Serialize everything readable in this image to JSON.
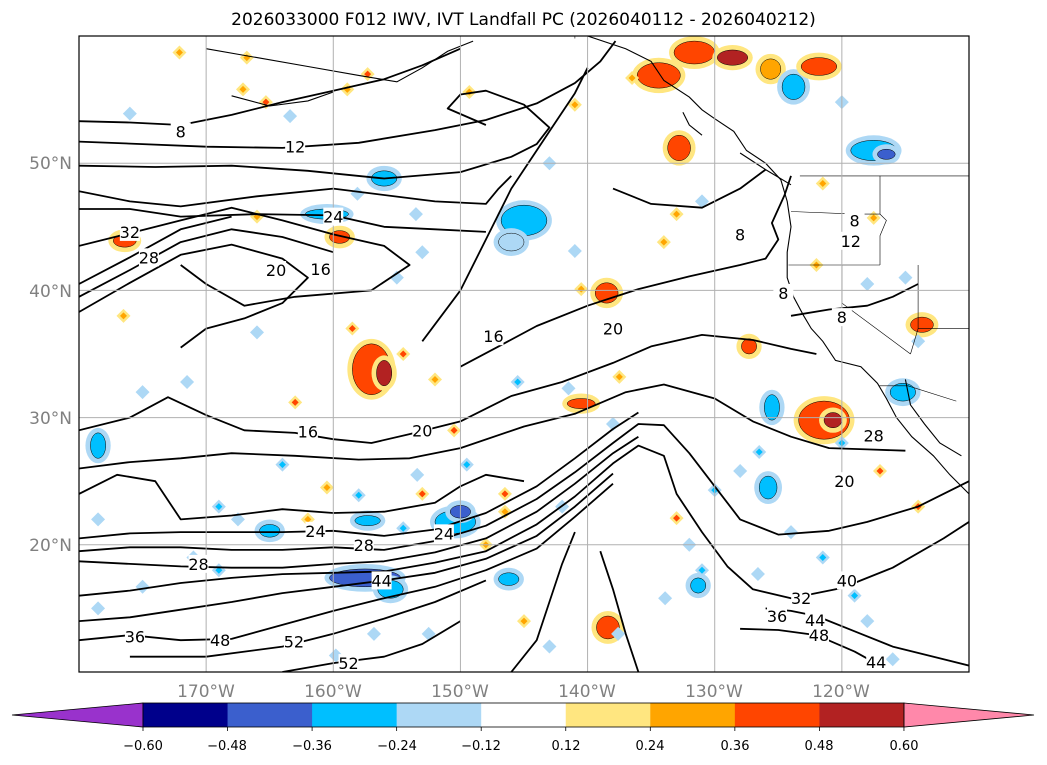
{
  "title": "2026033000 F012 IWV, IVT Landfall PC (2026040112 - 2026040212)",
  "map": {
    "lat_labels": [
      "50°N",
      "40°N",
      "30°N",
      "20°N"
    ],
    "lon_labels": [
      "170°W",
      "160°W",
      "150°W",
      "140°W",
      "130°W",
      "120°W"
    ],
    "gridline_color": "#b0b0b0",
    "land_outline_color": "#000000"
  },
  "contours": {
    "variable": "IWV",
    "labels": [
      {
        "text": "8",
        "lon": -172,
        "lat": 52.5
      },
      {
        "text": "12",
        "lon": -163,
        "lat": 51.3
      },
      {
        "text": "32",
        "lon": -176,
        "lat": 44.6
      },
      {
        "text": "28",
        "lon": -174.5,
        "lat": 42.6
      },
      {
        "text": "24",
        "lon": -160,
        "lat": 45.8
      },
      {
        "text": "20",
        "lon": -164.5,
        "lat": 41.6
      },
      {
        "text": "16",
        "lon": -161,
        "lat": 41.7
      },
      {
        "text": "8",
        "lon": -128,
        "lat": 44.4
      },
      {
        "text": "12",
        "lon": -119.3,
        "lat": 43.9
      },
      {
        "text": "8",
        "lon": -119,
        "lat": 45.5
      },
      {
        "text": "8",
        "lon": -124.6,
        "lat": 39.8
      },
      {
        "text": "8",
        "lon": -120,
        "lat": 37.9
      },
      {
        "text": "16",
        "lon": -147.4,
        "lat": 36.4
      },
      {
        "text": "20",
        "lon": -138,
        "lat": 37.0
      },
      {
        "text": "16",
        "lon": -162,
        "lat": 28.9
      },
      {
        "text": "20",
        "lon": -153,
        "lat": 29.0
      },
      {
        "text": "28",
        "lon": -117.5,
        "lat": 28.6
      },
      {
        "text": "20",
        "lon": -119.8,
        "lat": 25.0
      },
      {
        "text": "24",
        "lon": -161.4,
        "lat": 21.1
      },
      {
        "text": "28",
        "lon": -170.6,
        "lat": 18.5
      },
      {
        "text": "28",
        "lon": -157.6,
        "lat": 20.0
      },
      {
        "text": "24",
        "lon": -151.3,
        "lat": 20.9
      },
      {
        "text": "44",
        "lon": -156.2,
        "lat": 17.2
      },
      {
        "text": "40",
        "lon": -119.6,
        "lat": 17.2
      },
      {
        "text": "36",
        "lon": -125.1,
        "lat": 14.4
      },
      {
        "text": "32",
        "lon": -123.2,
        "lat": 15.8
      },
      {
        "text": "44",
        "lon": -122.1,
        "lat": 14.1
      },
      {
        "text": "48",
        "lon": -121.8,
        "lat": 12.9
      },
      {
        "text": "36",
        "lon": -175.6,
        "lat": 12.8
      },
      {
        "text": "48",
        "lon": -168.9,
        "lat": 12.5
      },
      {
        "text": "52",
        "lon": -163.1,
        "lat": 12.4
      },
      {
        "text": "52",
        "lon": -158.8,
        "lat": 10.7
      },
      {
        "text": "44",
        "lon": -117.3,
        "lat": 10.8
      }
    ]
  },
  "colorbar": {
    "tick_labels": [
      "−0.60",
      "−0.48",
      "−0.36",
      "−0.24",
      "−0.12",
      "0.12",
      "0.24",
      "0.36",
      "0.48",
      "0.60"
    ],
    "colors": [
      "#9932cc",
      "#00008b",
      "#3b5fcd",
      "#00bfff",
      "#add8f5",
      "#ffffff",
      "#ffe680",
      "#ffa500",
      "#ff4500",
      "#b22222",
      "#ff88aa"
    ]
  },
  "shading": {
    "variable": "IVT Landfall PC",
    "blobs": [
      {
        "lon": -160.5,
        "lat": 46.0,
        "rx": 1.7,
        "ry": 0.4,
        "level": -0.36
      },
      {
        "lon": -156,
        "lat": 48.8,
        "rx": 1.0,
        "ry": 0.6,
        "level": -0.36
      },
      {
        "lon": -145,
        "lat": 45.5,
        "rx": 1.8,
        "ry": 1.2,
        "level": -0.36
      },
      {
        "lon": -146,
        "lat": 43.8,
        "rx": 1.0,
        "ry": 0.7,
        "level": -0.24
      },
      {
        "lon": -157,
        "lat": 33.8,
        "rx": 1.5,
        "ry": 2.0,
        "level": 0.36
      },
      {
        "lon": -156,
        "lat": 33.5,
        "rx": 0.6,
        "ry": 1.0,
        "level": 0.48
      },
      {
        "lon": -159.5,
        "lat": 44.2,
        "rx": 0.8,
        "ry": 0.5,
        "level": 0.36
      },
      {
        "lon": -176.4,
        "lat": 43.9,
        "rx": 0.9,
        "ry": 0.5,
        "level": 0.36
      },
      {
        "lon": -138.5,
        "lat": 39.8,
        "rx": 0.9,
        "ry": 0.8,
        "level": 0.36
      },
      {
        "lon": -140.5,
        "lat": 31.1,
        "rx": 1.1,
        "ry": 0.4,
        "level": 0.36
      },
      {
        "lon": -157.5,
        "lat": 17.4,
        "rx": 2.8,
        "ry": 0.7,
        "level": -0.48
      },
      {
        "lon": -155.5,
        "lat": 16.5,
        "rx": 1.0,
        "ry": 0.7,
        "level": -0.36
      },
      {
        "lon": -150.4,
        "lat": 21.8,
        "rx": 1.6,
        "ry": 0.9,
        "level": -0.36
      },
      {
        "lon": -150,
        "lat": 22.6,
        "rx": 0.8,
        "ry": 0.5,
        "level": -0.48
      },
      {
        "lon": -165,
        "lat": 21.1,
        "rx": 0.8,
        "ry": 0.5,
        "level": -0.36
      },
      {
        "lon": -157.3,
        "lat": 21.9,
        "rx": 1.0,
        "ry": 0.4,
        "level": -0.36
      },
      {
        "lon": -138.4,
        "lat": 13.5,
        "rx": 0.9,
        "ry": 0.9,
        "level": 0.36
      },
      {
        "lon": -134.4,
        "lat": 56.9,
        "rx": 1.7,
        "ry": 1.0,
        "level": 0.36
      },
      {
        "lon": -131.6,
        "lat": 58.7,
        "rx": 1.6,
        "ry": 0.9,
        "level": 0.36
      },
      {
        "lon": -128.6,
        "lat": 58.3,
        "rx": 1.2,
        "ry": 0.6,
        "level": 0.48
      },
      {
        "lon": -125.6,
        "lat": 57.4,
        "rx": 0.8,
        "ry": 0.8,
        "level": 0.24
      },
      {
        "lon": -132.8,
        "lat": 51.2,
        "rx": 0.9,
        "ry": 1.0,
        "level": 0.36
      },
      {
        "lon": -123.8,
        "lat": 56.0,
        "rx": 0.9,
        "ry": 1.0,
        "level": -0.36
      },
      {
        "lon": -121.8,
        "lat": 57.6,
        "rx": 1.4,
        "ry": 0.7,
        "level": 0.36
      },
      {
        "lon": -127.3,
        "lat": 35.6,
        "rx": 0.6,
        "ry": 0.6,
        "level": 0.36
      },
      {
        "lon": -125.5,
        "lat": 30.8,
        "rx": 0.6,
        "ry": 1.0,
        "level": -0.36
      },
      {
        "lon": -121.4,
        "lat": 29.8,
        "rx": 2.0,
        "ry": 1.5,
        "level": 0.36
      },
      {
        "lon": -120.7,
        "lat": 29.8,
        "rx": 0.7,
        "ry": 0.6,
        "level": 0.48
      },
      {
        "lon": -115.2,
        "lat": 32.0,
        "rx": 1.0,
        "ry": 0.7,
        "level": -0.36
      },
      {
        "lon": -125.8,
        "lat": 24.5,
        "rx": 0.7,
        "ry": 0.9,
        "level": -0.36
      },
      {
        "lon": -117.5,
        "lat": 51.0,
        "rx": 1.8,
        "ry": 0.8,
        "level": -0.36
      },
      {
        "lon": -116.5,
        "lat": 50.7,
        "rx": 0.7,
        "ry": 0.4,
        "level": -0.48
      },
      {
        "lon": -146.2,
        "lat": 17.3,
        "rx": 0.8,
        "ry": 0.5,
        "level": -0.36
      },
      {
        "lon": -178.5,
        "lat": 27.8,
        "rx": 0.6,
        "ry": 1.0,
        "level": -0.36
      },
      {
        "lon": -113.7,
        "lat": 37.3,
        "rx": 0.9,
        "ry": 0.6,
        "level": 0.36
      },
      {
        "lon": -131.3,
        "lat": 16.8,
        "rx": 0.6,
        "ry": 0.6,
        "level": -0.36
      }
    ],
    "dots": [
      {
        "lon": -165.3,
        "lat": 54.8,
        "level": 0.36
      },
      {
        "lon": -172.1,
        "lat": 58.7,
        "level": 0.24
      },
      {
        "lon": -166.8,
        "lat": 58.3,
        "level": 0.24
      },
      {
        "lon": -157.3,
        "lat": 57.0,
        "level": 0.36
      },
      {
        "lon": -149.3,
        "lat": 55.6,
        "level": 0.24
      },
      {
        "lon": -158.9,
        "lat": 55.8,
        "level": 0.24
      },
      {
        "lon": -167.1,
        "lat": 55.8,
        "level": 0.24
      },
      {
        "lon": -141.0,
        "lat": 54.6,
        "level": 0.24
      },
      {
        "lon": -143.0,
        "lat": 50.0,
        "level": -0.24
      },
      {
        "lon": -136.5,
        "lat": 56.7,
        "level": 0.24
      },
      {
        "lon": -120.0,
        "lat": 54.8,
        "level": -0.24
      },
      {
        "lon": -163.4,
        "lat": 53.7,
        "level": -0.24
      },
      {
        "lon": -158.1,
        "lat": 47.6,
        "level": -0.24
      },
      {
        "lon": -166.0,
        "lat": 45.8,
        "level": 0.24
      },
      {
        "lon": -153.5,
        "lat": 46.0,
        "level": -0.24
      },
      {
        "lon": -153.0,
        "lat": 43.0,
        "level": -0.24
      },
      {
        "lon": -133.0,
        "lat": 46.0,
        "level": 0.24
      },
      {
        "lon": -131.0,
        "lat": 47.0,
        "level": -0.24
      },
      {
        "lon": -121.5,
        "lat": 48.4,
        "level": 0.24
      },
      {
        "lon": -117.5,
        "lat": 45.7,
        "level": 0.24
      },
      {
        "lon": -141.0,
        "lat": 43.1,
        "level": -0.24
      },
      {
        "lon": -134.0,
        "lat": 43.8,
        "level": 0.24
      },
      {
        "lon": -140.5,
        "lat": 40.1,
        "level": 0.24
      },
      {
        "lon": -155.0,
        "lat": 41.0,
        "level": -0.24
      },
      {
        "lon": -158.5,
        "lat": 37.0,
        "level": 0.36
      },
      {
        "lon": -154.5,
        "lat": 35.0,
        "level": 0.36
      },
      {
        "lon": -152.0,
        "lat": 33.0,
        "level": 0.24
      },
      {
        "lon": -166.0,
        "lat": 36.7,
        "level": -0.24
      },
      {
        "lon": -176.5,
        "lat": 38.0,
        "level": 0.24
      },
      {
        "lon": -175.0,
        "lat": 32.0,
        "level": -0.24
      },
      {
        "lon": -171.5,
        "lat": 32.8,
        "level": -0.24
      },
      {
        "lon": -163.0,
        "lat": 31.2,
        "level": 0.36
      },
      {
        "lon": -145.5,
        "lat": 32.8,
        "level": -0.36
      },
      {
        "lon": -141.5,
        "lat": 32.3,
        "level": -0.24
      },
      {
        "lon": -137.5,
        "lat": 33.2,
        "level": 0.24
      },
      {
        "lon": -138.0,
        "lat": 29.5,
        "level": -0.24
      },
      {
        "lon": -150.5,
        "lat": 29.0,
        "level": 0.36
      },
      {
        "lon": -149.5,
        "lat": 26.3,
        "level": -0.36
      },
      {
        "lon": -153.4,
        "lat": 25.5,
        "level": -0.24
      },
      {
        "lon": -153.0,
        "lat": 24.0,
        "level": 0.36
      },
      {
        "lon": -146.5,
        "lat": 24.0,
        "level": 0.36
      },
      {
        "lon": -146.5,
        "lat": 22.6,
        "level": 0.24
      },
      {
        "lon": -142.0,
        "lat": 23.0,
        "level": -0.24
      },
      {
        "lon": -130.0,
        "lat": 24.3,
        "level": -0.36
      },
      {
        "lon": -128.0,
        "lat": 25.8,
        "level": -0.24
      },
      {
        "lon": -126.5,
        "lat": 27.3,
        "level": -0.36
      },
      {
        "lon": -120.0,
        "lat": 28.0,
        "level": -0.36
      },
      {
        "lon": -117.0,
        "lat": 25.8,
        "level": 0.36
      },
      {
        "lon": -133.0,
        "lat": 22.1,
        "level": 0.36
      },
      {
        "lon": -132.0,
        "lat": 20.0,
        "level": -0.24
      },
      {
        "lon": -131.0,
        "lat": 18.0,
        "level": -0.36
      },
      {
        "lon": -121.5,
        "lat": 19.0,
        "level": -0.36
      },
      {
        "lon": -124.0,
        "lat": 21.0,
        "level": -0.24
      },
      {
        "lon": -119.0,
        "lat": 16.0,
        "level": -0.36
      },
      {
        "lon": -114.0,
        "lat": 23.0,
        "level": 0.36
      },
      {
        "lon": -148.0,
        "lat": 20.0,
        "level": 0.24
      },
      {
        "lon": -154.5,
        "lat": 21.3,
        "level": -0.36
      },
      {
        "lon": -158.0,
        "lat": 23.9,
        "level": -0.36
      },
      {
        "lon": -160.5,
        "lat": 24.5,
        "level": 0.24
      },
      {
        "lon": -164.0,
        "lat": 26.3,
        "level": -0.36
      },
      {
        "lon": -162.0,
        "lat": 22.0,
        "level": 0.24
      },
      {
        "lon": -167.5,
        "lat": 22.0,
        "level": -0.24
      },
      {
        "lon": -169.0,
        "lat": 23.0,
        "level": -0.36
      },
      {
        "lon": -171.0,
        "lat": 19.0,
        "level": -0.24
      },
      {
        "lon": -169.0,
        "lat": 18.0,
        "level": -0.36
      },
      {
        "lon": -175.0,
        "lat": 16.7,
        "level": -0.24
      },
      {
        "lon": -178.5,
        "lat": 22.0,
        "level": -0.24
      },
      {
        "lon": -178.5,
        "lat": 15.0,
        "level": -0.24
      },
      {
        "lon": -159.8,
        "lat": 11.3,
        "level": -0.24
      },
      {
        "lon": -156.8,
        "lat": 13.0,
        "level": -0.24
      },
      {
        "lon": -152.5,
        "lat": 13.0,
        "level": -0.24
      },
      {
        "lon": -145.0,
        "lat": 14.0,
        "level": 0.24
      },
      {
        "lon": -143.0,
        "lat": 12.0,
        "level": -0.24
      },
      {
        "lon": -137.6,
        "lat": 13.0,
        "level": -0.24
      },
      {
        "lon": -133.9,
        "lat": 15.8,
        "level": -0.24
      },
      {
        "lon": -126.6,
        "lat": 17.7,
        "level": -0.24
      },
      {
        "lon": -118.0,
        "lat": 14.0,
        "level": -0.24
      },
      {
        "lon": -116.0,
        "lat": 11.0,
        "level": -0.24
      },
      {
        "lon": -114.0,
        "lat": 36.0,
        "level": -0.24
      },
      {
        "lon": -115.0,
        "lat": 41.0,
        "level": -0.24
      },
      {
        "lon": -118.0,
        "lat": 40.5,
        "level": -0.24
      },
      {
        "lon": -122.0,
        "lat": 42.0,
        "level": 0.24
      },
      {
        "lon": -176.0,
        "lat": 53.9,
        "level": -0.24
      }
    ]
  }
}
